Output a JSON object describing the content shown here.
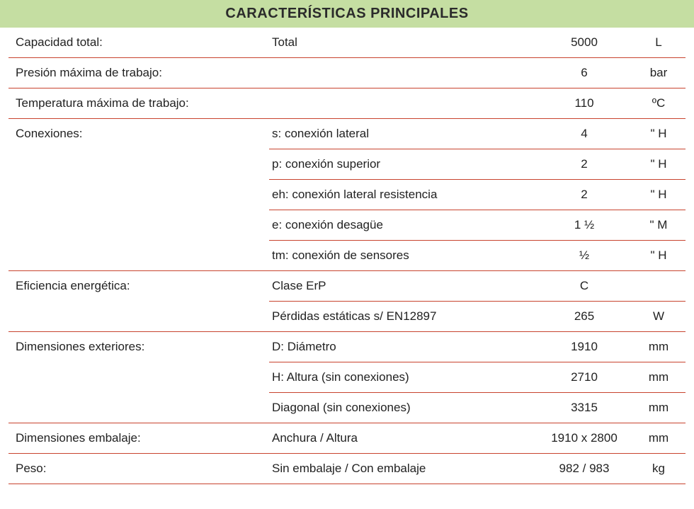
{
  "colors": {
    "header_bg": "#c5dea2",
    "divider": "#c8432e",
    "text": "#2b2b2b"
  },
  "title": "CARACTERÍSTICAS PRINCIPALES",
  "rows": [
    {
      "label": "Capacidad total:",
      "desc": "Total",
      "value": "5000",
      "unit": "L",
      "divider": "full"
    },
    {
      "label": "Presión máxima de trabajo:",
      "desc": "",
      "value": "6",
      "unit": "bar",
      "divider": "full"
    },
    {
      "label": "Temperatura máxima de trabajo:",
      "desc": "",
      "value": "110",
      "unit": "ºC",
      "divider": "full"
    },
    {
      "label": "Conexiones:",
      "desc": "s: conexión lateral",
      "value": "4",
      "unit": "\" H",
      "divider": "partial"
    },
    {
      "label": "",
      "desc": "p: conexión superior",
      "value": "2",
      "unit": "\" H",
      "divider": "partial"
    },
    {
      "label": "",
      "desc": "eh: conexión lateral resistencia",
      "value": "2",
      "unit": "\" H",
      "divider": "partial"
    },
    {
      "label": "",
      "desc": "e: conexión desagüe",
      "value": "1 ½",
      "unit": "\" M",
      "divider": "partial"
    },
    {
      "label": "",
      "desc": "tm: conexión de sensores",
      "value": "½",
      "unit": "\" H",
      "divider": "full"
    },
    {
      "label": "Eficiencia energética:",
      "desc": "Clase ErP",
      "value": "C",
      "unit": "",
      "divider": "partial"
    },
    {
      "label": "",
      "desc": "Pérdidas estáticas s/ EN12897",
      "value": "265",
      "unit": "W",
      "divider": "full"
    },
    {
      "label": "Dimensiones exteriores:",
      "desc": "D: Diámetro",
      "value": "1910",
      "unit": "mm",
      "divider": "partial"
    },
    {
      "label": "",
      "desc": "H: Altura (sin conexiones)",
      "value": "2710",
      "unit": "mm",
      "divider": "partial"
    },
    {
      "label": "",
      "desc": "Diagonal (sin conexiones)",
      "value": "3315",
      "unit": "mm",
      "divider": "full"
    },
    {
      "label": "Dimensiones embalaje:",
      "desc": "Anchura / Altura",
      "value": "1910 x 2800",
      "unit": "mm",
      "divider": "full"
    },
    {
      "label": "Peso:",
      "desc": "Sin embalaje / Con embalaje",
      "value": "982 / 983",
      "unit": "kg",
      "divider": "full"
    }
  ]
}
